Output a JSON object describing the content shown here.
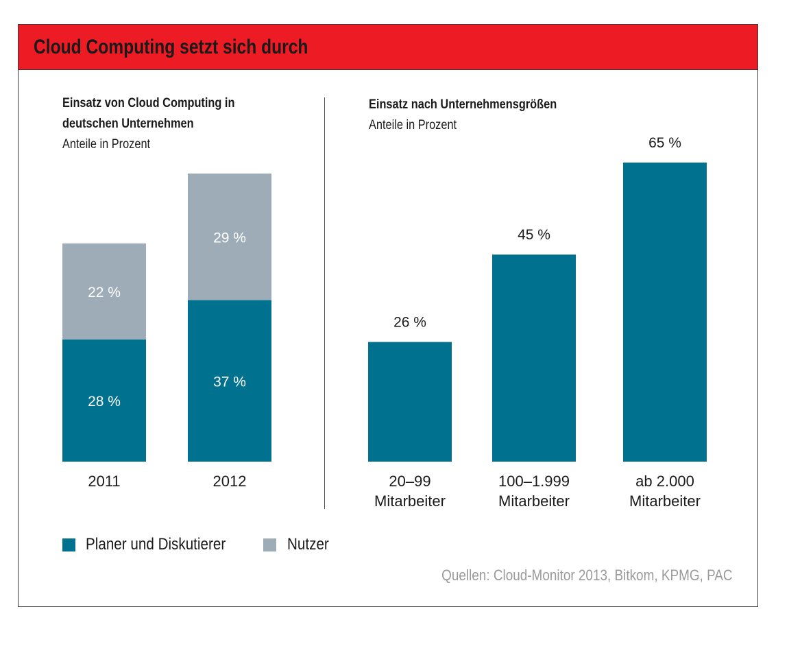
{
  "title": "Cloud Computing setzt sich durch",
  "colors": {
    "header": "#ed1c24",
    "primary": "#00718f",
    "secondary": "#9eacb8"
  },
  "legend": [
    {
      "label": "Planer und Diskutierer",
      "color": "#00718f"
    },
    {
      "label": "Nutzer",
      "color": "#9eacb8"
    }
  ],
  "source": "Quellen: Cloud-Monitor 2013, Bitkom, KPMG, PAC",
  "chart_data": [
    {
      "type": "bar",
      "stacked": true,
      "title_line1": "Einsatz von Cloud Computing in",
      "title_line2": "deutschen Unternehmen",
      "subtitle": "Anteile in Prozent",
      "categories": [
        "2011",
        "2012"
      ],
      "series": [
        {
          "name": "Planer und Diskutierer",
          "values": [
            28,
            37
          ],
          "labels": [
            "28 %",
            "37 %"
          ],
          "color": "#00718f"
        },
        {
          "name": "Nutzer",
          "values": [
            22,
            29
          ],
          "labels": [
            "22 %",
            "29 %"
          ],
          "color": "#9eacb8"
        }
      ],
      "ylim": [
        0,
        66
      ]
    },
    {
      "type": "bar",
      "title": "Einsatz nach Unternehmensgrößen",
      "subtitle": "Anteile in Prozent",
      "categories": [
        [
          "20–99",
          "Mitarbeiter"
        ],
        [
          "100–1.999",
          "Mitarbeiter"
        ],
        [
          "ab 2.000",
          "Mitarbeiter"
        ]
      ],
      "values": [
        26,
        45,
        65
      ],
      "labels": [
        "26 %",
        "45 %",
        "65 %"
      ],
      "color": "#00718f",
      "ylim": [
        0,
        65
      ]
    }
  ]
}
